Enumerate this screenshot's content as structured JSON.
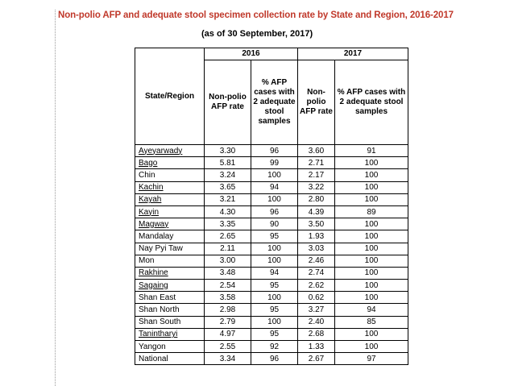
{
  "document": {
    "title": "Non-polio AFP and adequate stool specimen collection rate by State and Region, 2016-2017",
    "subtitle": "(as of 30 September, 2017)"
  },
  "table": {
    "region_header": "State/Region",
    "year_2016": "2016",
    "year_2017": "2017",
    "col_2016_rate": "Non-polio AFP rate",
    "col_2016_pct": "% AFP cases with 2 adequate stool samples",
    "col_2017_rate": "Non-polio AFP rate",
    "col_2017_pct": "% AFP cases with 2 adequate stool samples",
    "rows": [
      {
        "region": "Ayeyarwady",
        "r2016": "3.30",
        "p2016": "96",
        "r2017": "3.60",
        "p2017": "91"
      },
      {
        "region": "Bago",
        "r2016": "5.81",
        "p2016": "99",
        "r2017": "2.71",
        "p2017": "100"
      },
      {
        "region": "Chin",
        "r2016": "3.24",
        "p2016": "100",
        "r2017": "2.17",
        "p2017": "100"
      },
      {
        "region": "Kachin",
        "r2016": "3.65",
        "p2016": "94",
        "r2017": "3.22",
        "p2017": "100"
      },
      {
        "region": "Kayah",
        "r2016": "3.21",
        "p2016": "100",
        "r2017": "2.80",
        "p2017": "100"
      },
      {
        "region": "Kayin",
        "r2016": "4.30",
        "p2016": "96",
        "r2017": "4.39",
        "p2017": "89"
      },
      {
        "region": "Magway",
        "r2016": "3.35",
        "p2016": "90",
        "r2017": "3.50",
        "p2017": "100"
      },
      {
        "region": "Mandalay",
        "r2016": "2.65",
        "p2016": "95",
        "r2017": "1.93",
        "p2017": "100"
      },
      {
        "region": "Nay Pyi Taw",
        "r2016": "2.11",
        "p2016": "100",
        "r2017": "3.03",
        "p2017": "100"
      },
      {
        "region": "Mon",
        "r2016": "3.00",
        "p2016": "100",
        "r2017": "2.46",
        "p2017": "100"
      },
      {
        "region": "Rakhine",
        "r2016": "3.48",
        "p2016": "94",
        "r2017": "2.74",
        "p2017": "100"
      },
      {
        "region": "Sagaing",
        "r2016": "2.54",
        "p2016": "95",
        "r2017": "2.62",
        "p2017": "100"
      },
      {
        "region": "Shan East",
        "r2016": "3.58",
        "p2016": "100",
        "r2017": "0.62",
        "p2017": "100"
      },
      {
        "region": "Shan North",
        "r2016": "2.98",
        "p2016": "95",
        "r2017": "3.27",
        "p2017": "94"
      },
      {
        "region": "Shan South",
        "r2016": "2.79",
        "p2016": "100",
        "r2017": "2.40",
        "p2017": "85"
      },
      {
        "region": "Tanintharyi",
        "r2016": "4.97",
        "p2016": "95",
        "r2017": "2.68",
        "p2017": "100"
      },
      {
        "region": "Yangon",
        "r2016": "2.55",
        "p2016": "92",
        "r2017": "1.33",
        "p2017": "100"
      },
      {
        "region": "National",
        "r2016": "3.34",
        "p2016": "96",
        "r2017": "2.67",
        "p2017": "97"
      }
    ]
  }
}
